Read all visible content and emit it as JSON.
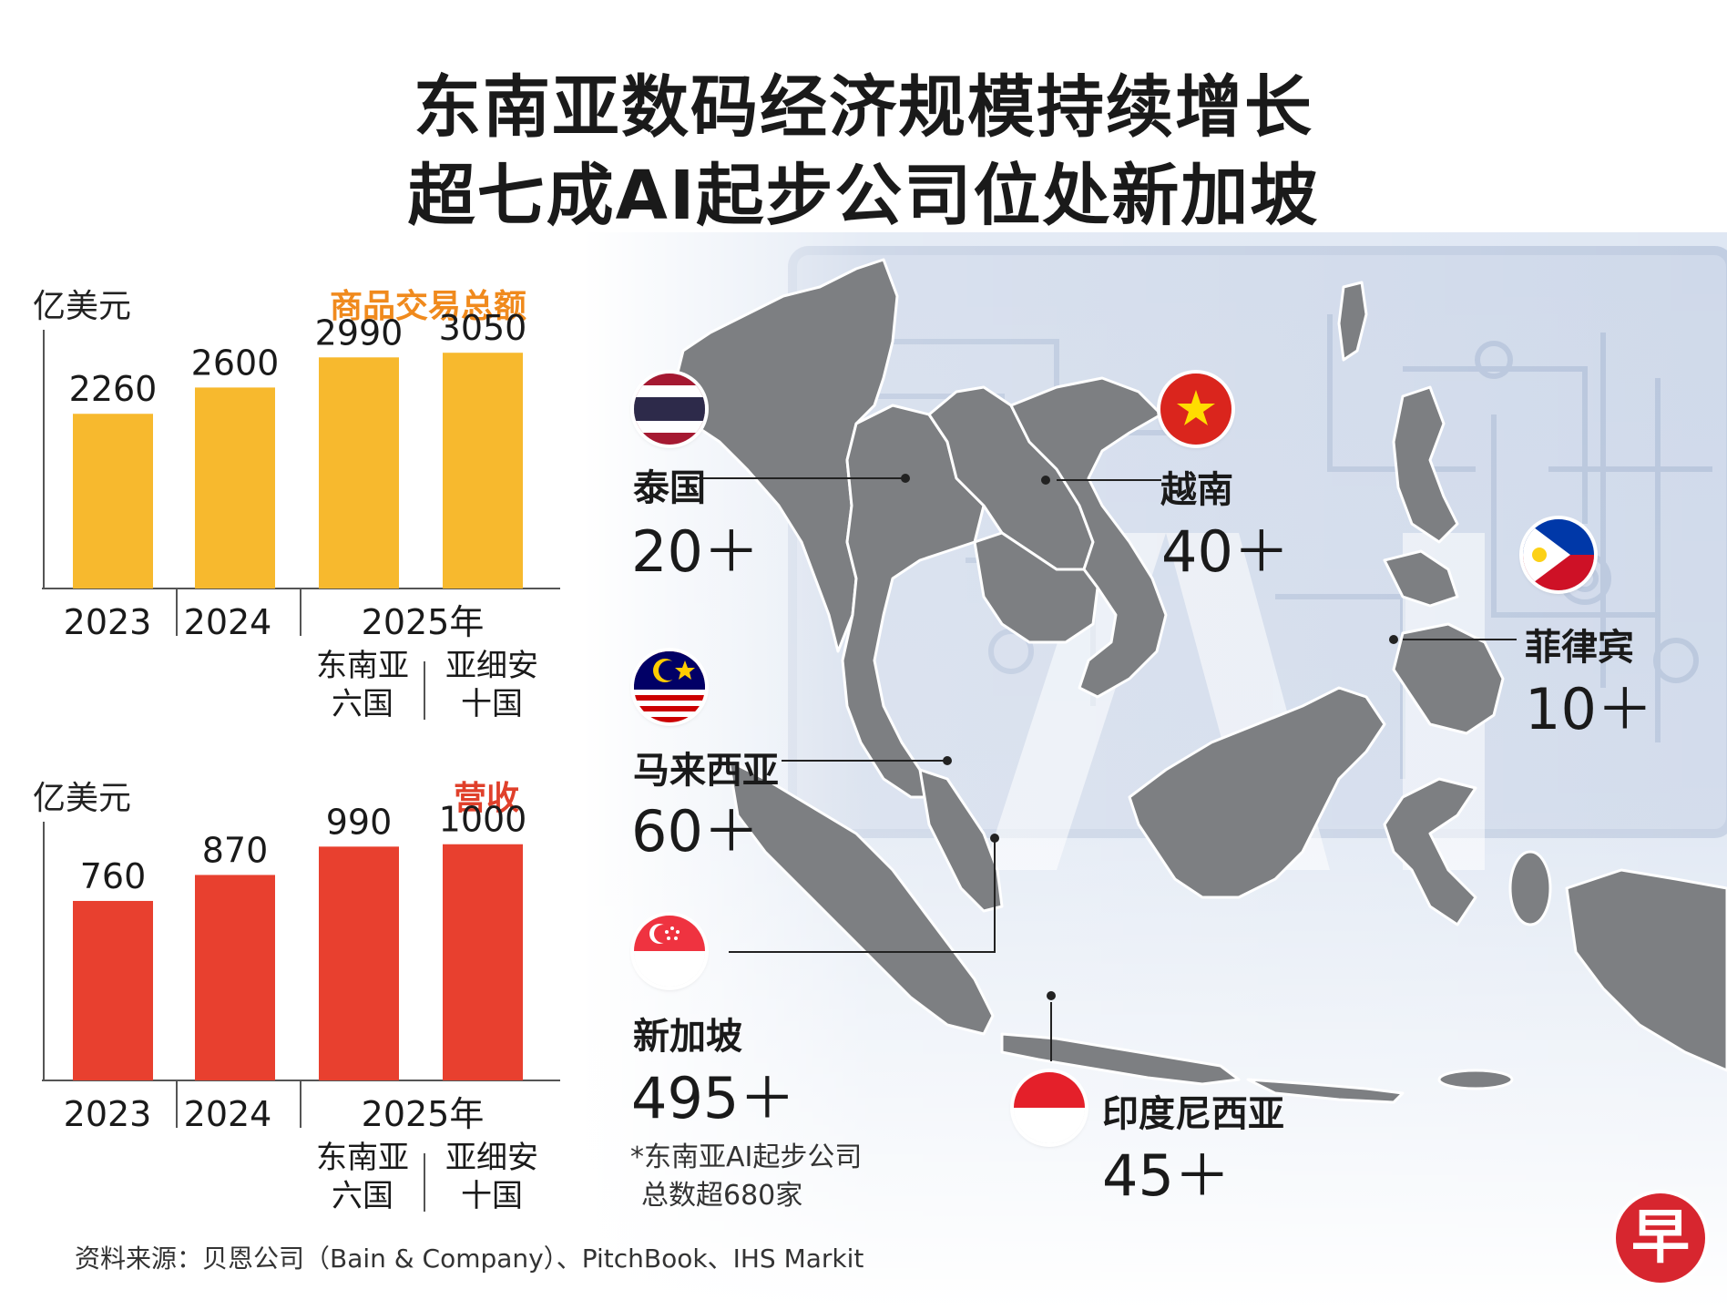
{
  "title_line1": "东南亚数码经济规模持续增长",
  "title_line2": "超七成AI起步公司位处新加坡",
  "chart_data": [
    {
      "type": "bar",
      "title": "商品交易总额",
      "unit": "亿美元",
      "color": "#f7b92e",
      "title_color": "#f08a1d",
      "categories": [
        "2023",
        "2024",
        "2025年 东南亚六国",
        "2025年 亚细安十国"
      ],
      "values": [
        2260,
        2600,
        2990,
        3050
      ],
      "tick_labels": [
        "2023",
        "2024",
        "2025年"
      ],
      "sub_labels": [
        "东南亚",
        "六国",
        "亚细安",
        "十国"
      ],
      "ylim": [
        0,
        3300
      ]
    },
    {
      "type": "bar",
      "title": "营收",
      "unit": "亿美元",
      "color": "#e8402f",
      "title_color": "#e0402b",
      "categories": [
        "2023",
        "2024",
        "2025年 东南亚六国",
        "2025年 亚细安十国"
      ],
      "values": [
        760,
        870,
        990,
        1000
      ],
      "tick_labels": [
        "2023",
        "2024",
        "2025年"
      ],
      "sub_labels": [
        "东南亚",
        "六国",
        "亚细安",
        "十国"
      ],
      "ylim": [
        0,
        1080
      ]
    }
  ],
  "countries": [
    {
      "name": "泰国",
      "count": "20＋"
    },
    {
      "name": "越南",
      "count": "40＋"
    },
    {
      "name": "菲律宾",
      "count": "10＋"
    },
    {
      "name": "马来西亚",
      "count": "60＋"
    },
    {
      "name": "新加坡",
      "count": "495＋"
    },
    {
      "name": "印度尼西亚",
      "count": "45＋"
    }
  ],
  "note_line1": "*东南亚AI起步公司",
  "note_line2": "总数超680家",
  "source": "资料来源：贝恩公司（Bain & Company）、PitchBook、IHS Markit",
  "logo_char": "早",
  "colors": {
    "map": "#7d7f82",
    "panel": "#dbe4f2",
    "circuit": "#b9c7de"
  }
}
